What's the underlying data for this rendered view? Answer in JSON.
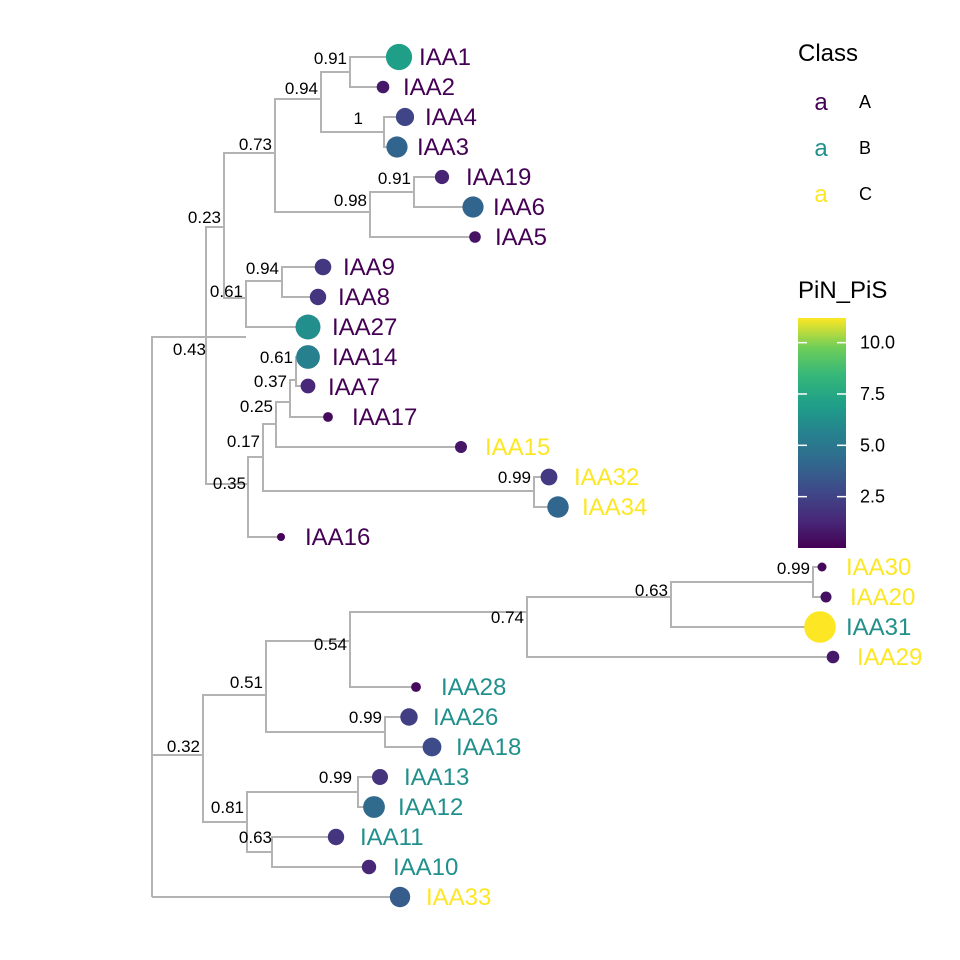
{
  "tips": [
    {
      "label": "IAA1",
      "class": "A",
      "pin_pis": 7.0
    },
    {
      "label": "IAA2",
      "class": "A",
      "pin_pis": 0.8
    },
    {
      "label": "IAA4",
      "class": "A",
      "pin_pis": 2.6
    },
    {
      "label": "IAA3",
      "class": "A",
      "pin_pis": 4.0
    },
    {
      "label": "IAA19",
      "class": "A",
      "pin_pis": 1.2
    },
    {
      "label": "IAA6",
      "class": "A",
      "pin_pis": 4.0
    },
    {
      "label": "IAA5",
      "class": "A",
      "pin_pis": 0.6
    },
    {
      "label": "IAA9",
      "class": "A",
      "pin_pis": 2.0
    },
    {
      "label": "IAA8",
      "class": "A",
      "pin_pis": 1.9
    },
    {
      "label": "IAA27",
      "class": "A",
      "pin_pis": 6.2
    },
    {
      "label": "IAA14",
      "class": "A",
      "pin_pis": 5.5
    },
    {
      "label": "IAA7",
      "class": "A",
      "pin_pis": 1.4
    },
    {
      "label": "IAA17",
      "class": "A",
      "pin_pis": 0.3
    },
    {
      "label": "IAA15",
      "class": "C",
      "pin_pis": 0.7
    },
    {
      "label": "IAA32",
      "class": "C",
      "pin_pis": 2.1
    },
    {
      "label": "IAA34",
      "class": "C",
      "pin_pis": 4.1
    },
    {
      "label": "IAA16",
      "class": "A",
      "pin_pis": 0.1
    },
    {
      "label": "IAA30",
      "class": "C",
      "pin_pis": 0.2
    },
    {
      "label": "IAA20",
      "class": "C",
      "pin_pis": 0.5
    },
    {
      "label": "IAA31",
      "class": "B",
      "pin_pis": 11.2
    },
    {
      "label": "IAA29",
      "class": "C",
      "pin_pis": 0.8
    },
    {
      "label": "IAA28",
      "class": "B",
      "pin_pis": 0.3
    },
    {
      "label": "IAA26",
      "class": "B",
      "pin_pis": 2.3
    },
    {
      "label": "IAA18",
      "class": "B",
      "pin_pis": 2.9
    },
    {
      "label": "IAA13",
      "class": "B",
      "pin_pis": 1.8
    },
    {
      "label": "IAA12",
      "class": "B",
      "pin_pis": 4.3
    },
    {
      "label": "IAA11",
      "class": "B",
      "pin_pis": 1.9
    },
    {
      "label": "IAA10",
      "class": "B",
      "pin_pis": 1.3
    },
    {
      "label": "IAA33",
      "class": "C",
      "pin_pis": 3.6
    }
  ],
  "support_values": [
    "0.91",
    "0.94",
    "1",
    "0.73",
    "0.91",
    "0.98",
    "0.23",
    "0.94",
    "0.61",
    "0.43",
    "0.61",
    "0.37",
    "0.25",
    "0.17",
    "0.99",
    "0.35",
    "0.99",
    "0.63",
    "0.74",
    "0.54",
    "0.51",
    "0.99",
    "0.32",
    "0.99",
    "0.81",
    "0.63"
  ],
  "legend_class": {
    "title": "Class",
    "key_glyph": "a",
    "items": [
      {
        "label": "A",
        "color": "#440154"
      },
      {
        "label": "B",
        "color": "#21908C"
      },
      {
        "label": "C",
        "color": "#FDE725"
      }
    ]
  },
  "legend_color": {
    "title": "PiN_PiS",
    "ticks": [
      {
        "value": 2.5,
        "label": "2.5"
      },
      {
        "value": 5.0,
        "label": "5.0"
      },
      {
        "value": 7.5,
        "label": "7.5"
      },
      {
        "value": 10.0,
        "label": "10.0"
      }
    ],
    "range": [
      0,
      11.2
    ],
    "palette": "viridis"
  },
  "colors": {
    "branch": "#b3b3b3",
    "class_A": "#440154",
    "class_B": "#21908C",
    "class_C": "#FDE725"
  }
}
